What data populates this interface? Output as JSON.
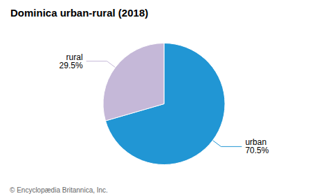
{
  "chart_data": {
    "type": "pie",
    "title": "Dominica urban-rural (2018)",
    "categories": [
      "urban",
      "rural"
    ],
    "values": [
      70.5,
      29.5
    ],
    "value_labels": [
      "70.5%",
      "29.5%"
    ],
    "data_labels": true,
    "colors": [
      "#2196d4",
      "#c5b8d8"
    ],
    "footnote": "© Encyclopædia Britannica, Inc."
  }
}
